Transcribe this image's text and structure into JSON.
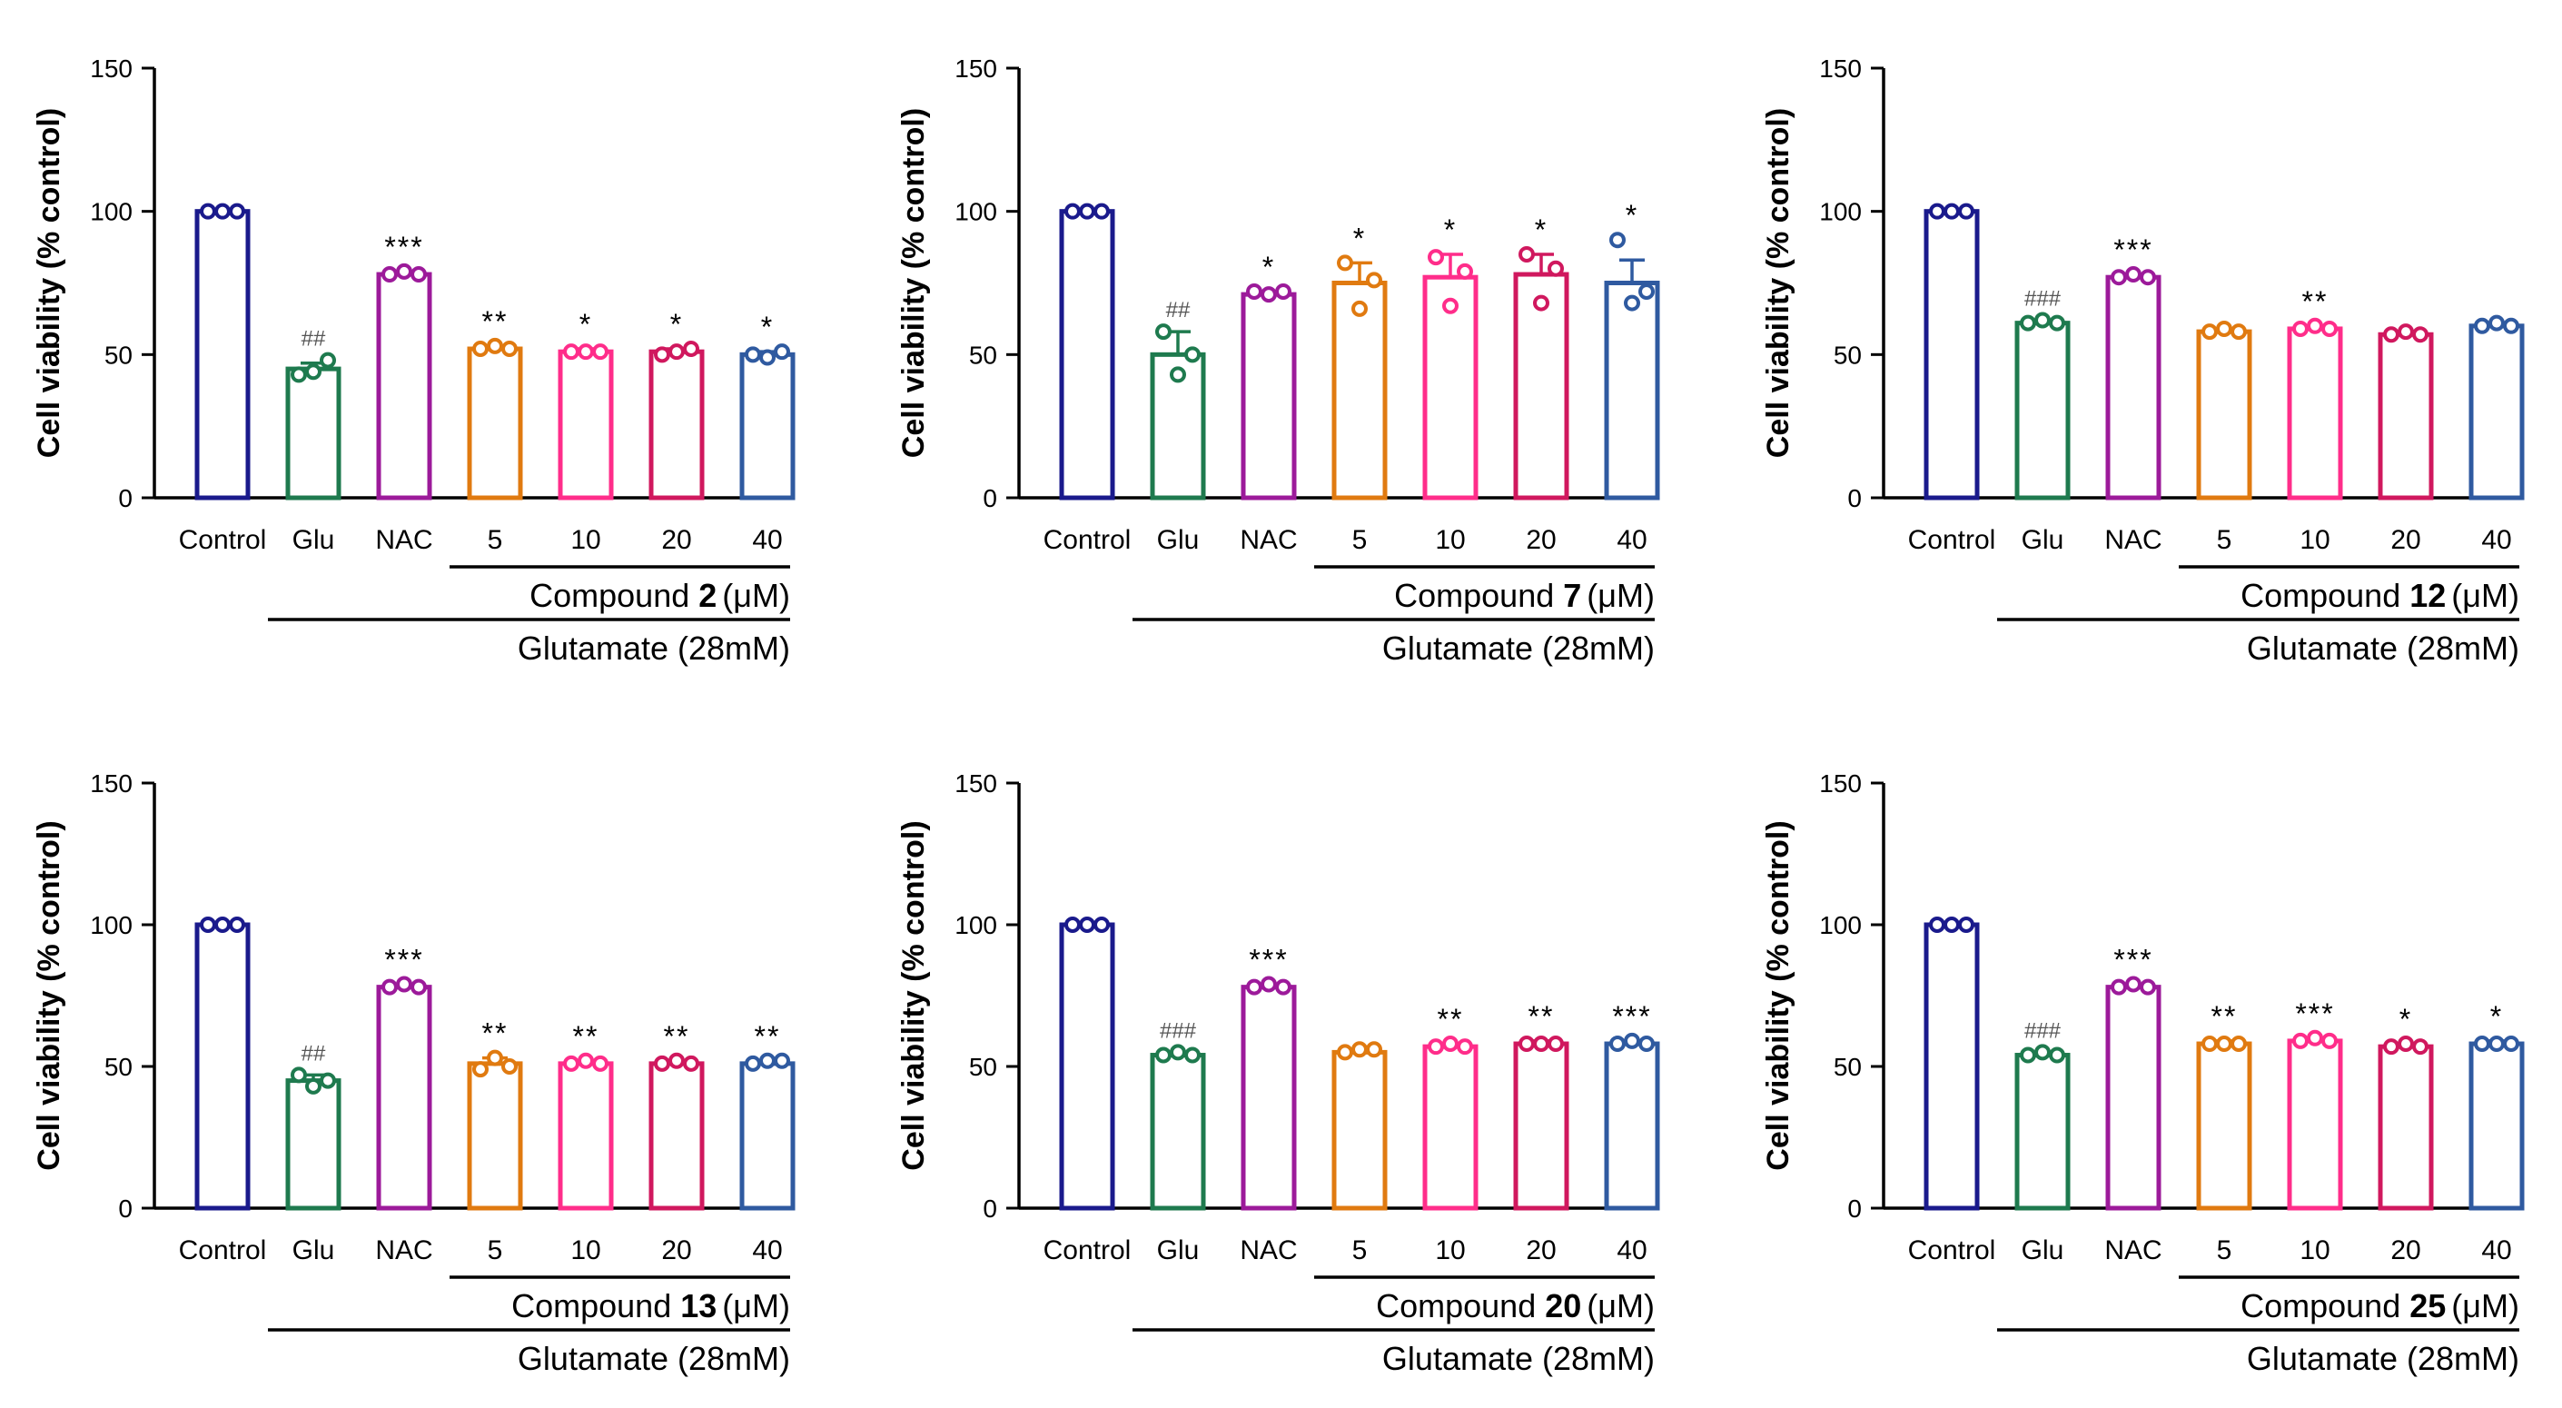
{
  "figure": {
    "bar_colors": [
      "#1a1a8c",
      "#1e7a4e",
      "#9c1a9a",
      "#e07a10",
      "#ff2d8a",
      "#d0185e",
      "#2f5aa0"
    ],
    "axis_color": "#000000"
  },
  "chart_data": [
    {
      "type": "bar",
      "ylabel": "Cell viability (% control)",
      "ylim": [
        0,
        150
      ],
      "yticks": [
        "0",
        "50",
        "100",
        "150"
      ],
      "categories": [
        "Control",
        "Glu",
        "NAC",
        "5",
        "10",
        "20",
        "40"
      ],
      "values": [
        100,
        45,
        78,
        52,
        51,
        51,
        50
      ],
      "errors": [
        0,
        2,
        1,
        1,
        1,
        1,
        1
      ],
      "points": [
        [
          100,
          100,
          100
        ],
        [
          43,
          44,
          48
        ],
        [
          78,
          79,
          78
        ],
        [
          52,
          53,
          52
        ],
        [
          51,
          51,
          51
        ],
        [
          50,
          51,
          52
        ],
        [
          50,
          49,
          51
        ]
      ],
      "significance": [
        "",
        "##",
        "***",
        "**",
        "*",
        "*",
        "*"
      ],
      "compound_label": "Compound",
      "compound_number": "2",
      "compound_unit": "(μM)",
      "group_label": "Glutamate (28mM)"
    },
    {
      "type": "bar",
      "ylabel": "Cell viability (% control)",
      "ylim": [
        0,
        150
      ],
      "yticks": [
        "0",
        "50",
        "100",
        "150"
      ],
      "categories": [
        "Control",
        "Glu",
        "NAC",
        "5",
        "10",
        "20",
        "40"
      ],
      "values": [
        100,
        50,
        71,
        75,
        77,
        78,
        75
      ],
      "errors": [
        0,
        8,
        1,
        7,
        8,
        7,
        8
      ],
      "points": [
        [
          100,
          100,
          100
        ],
        [
          58,
          43,
          50
        ],
        [
          72,
          71,
          72
        ],
        [
          82,
          66,
          76
        ],
        [
          84,
          67,
          79
        ],
        [
          85,
          68,
          80
        ],
        [
          90,
          68,
          72
        ]
      ],
      "significance": [
        "",
        "##",
        "*",
        "*",
        "*",
        "*",
        "*"
      ],
      "compound_label": "Compound",
      "compound_number": "7",
      "compound_unit": "(μM)",
      "group_label": "Glutamate (28mM)"
    },
    {
      "type": "bar",
      "ylabel": "Cell viability (% control)",
      "ylim": [
        0,
        150
      ],
      "yticks": [
        "0",
        "50",
        "100",
        "150"
      ],
      "categories": [
        "Control",
        "Glu",
        "NAC",
        "5",
        "10",
        "20",
        "40"
      ],
      "values": [
        100,
        61,
        77,
        58,
        59,
        57,
        60
      ],
      "errors": [
        0,
        1,
        1,
        1,
        1,
        1,
        1
      ],
      "points": [
        [
          100,
          100,
          100
        ],
        [
          61,
          62,
          61
        ],
        [
          77,
          78,
          77
        ],
        [
          58,
          59,
          58
        ],
        [
          59,
          60,
          59
        ],
        [
          57,
          58,
          57
        ],
        [
          60,
          61,
          60
        ]
      ],
      "significance": [
        "",
        "###",
        "***",
        "",
        "**",
        "",
        ""
      ],
      "compound_label": "Compound",
      "compound_number": "12",
      "compound_unit": "(μM)",
      "group_label": "Glutamate (28mM)"
    },
    {
      "type": "bar",
      "ylabel": "Cell viability (% control)",
      "ylim": [
        0,
        150
      ],
      "yticks": [
        "0",
        "50",
        "100",
        "150"
      ],
      "categories": [
        "Control",
        "Glu",
        "NAC",
        "5",
        "10",
        "20",
        "40"
      ],
      "values": [
        100,
        45,
        78,
        51,
        51,
        51,
        51
      ],
      "errors": [
        0,
        2,
        1,
        2,
        1,
        1,
        1
      ],
      "points": [
        [
          100,
          100,
          100
        ],
        [
          47,
          43,
          45
        ],
        [
          78,
          79,
          78
        ],
        [
          49,
          53,
          50
        ],
        [
          51,
          52,
          51
        ],
        [
          51,
          52,
          51
        ],
        [
          51,
          52,
          52
        ]
      ],
      "significance": [
        "",
        "##",
        "***",
        "**",
        "**",
        "**",
        "**"
      ],
      "compound_label": "Compound",
      "compound_number": "13",
      "compound_unit": "(μM)",
      "group_label": "Glutamate (28mM)"
    },
    {
      "type": "bar",
      "ylabel": "Cell viability (% control)",
      "ylim": [
        0,
        150
      ],
      "yticks": [
        "0",
        "50",
        "100",
        "150"
      ],
      "categories": [
        "Control",
        "Glu",
        "NAC",
        "5",
        "10",
        "20",
        "40"
      ],
      "values": [
        100,
        54,
        78,
        55,
        57,
        58,
        58
      ],
      "errors": [
        0,
        1,
        1,
        1,
        1,
        1,
        1
      ],
      "points": [
        [
          100,
          100,
          100
        ],
        [
          54,
          55,
          54
        ],
        [
          78,
          79,
          78
        ],
        [
          55,
          56,
          56
        ],
        [
          57,
          58,
          57
        ],
        [
          58,
          58,
          58
        ],
        [
          58,
          59,
          58
        ]
      ],
      "significance": [
        "",
        "###",
        "***",
        "",
        "**",
        "**",
        "***"
      ],
      "compound_label": "Compound",
      "compound_number": "20",
      "compound_unit": "(μM)",
      "group_label": "Glutamate (28mM)"
    },
    {
      "type": "bar",
      "ylabel": "Cell viability (% control)",
      "ylim": [
        0,
        150
      ],
      "yticks": [
        "0",
        "50",
        "100",
        "150"
      ],
      "categories": [
        "Control",
        "Glu",
        "NAC",
        "5",
        "10",
        "20",
        "40"
      ],
      "values": [
        100,
        54,
        78,
        58,
        59,
        57,
        58
      ],
      "errors": [
        0,
        1,
        1,
        1,
        1,
        1,
        1
      ],
      "points": [
        [
          100,
          100,
          100
        ],
        [
          54,
          55,
          54
        ],
        [
          78,
          79,
          78
        ],
        [
          58,
          58,
          58
        ],
        [
          59,
          60,
          59
        ],
        [
          57,
          58,
          57
        ],
        [
          58,
          58,
          58
        ]
      ],
      "significance": [
        "",
        "###",
        "***",
        "**",
        "***",
        "*",
        "*"
      ],
      "compound_label": "Compound",
      "compound_number": "25",
      "compound_unit": "(μM)",
      "group_label": "Glutamate (28mM)"
    }
  ]
}
